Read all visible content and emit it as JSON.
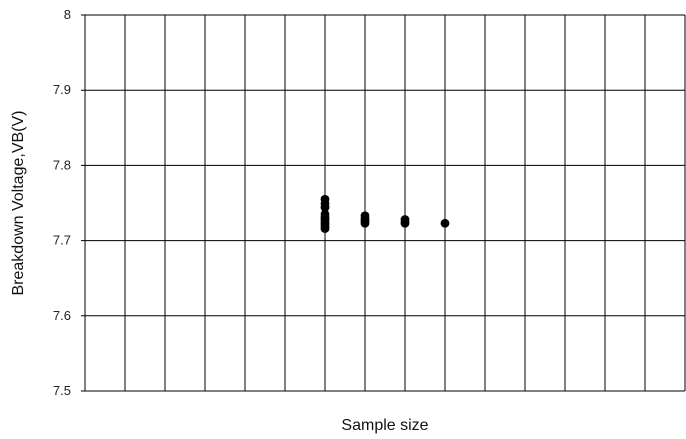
{
  "chart_data": {
    "type": "scatter",
    "title": "",
    "xlabel": "Sample size",
    "ylabel": "Breakdown Voltage,VB(V)",
    "ylim": [
      7.5,
      8.0
    ],
    "yticks": [
      "7.5",
      "7.6",
      "7.7",
      "7.8",
      "7.9",
      "8"
    ],
    "x_columns": 15,
    "x_tick_labels": [],
    "grid": true,
    "legend": "none",
    "marker_color": "#000000",
    "points": [
      {
        "x": 6,
        "y": 7.755
      },
      {
        "x": 6,
        "y": 7.749
      },
      {
        "x": 6,
        "y": 7.744
      },
      {
        "x": 6,
        "y": 7.735
      },
      {
        "x": 6,
        "y": 7.731
      },
      {
        "x": 6,
        "y": 7.728
      },
      {
        "x": 6,
        "y": 7.725
      },
      {
        "x": 6,
        "y": 7.722
      },
      {
        "x": 6,
        "y": 7.719
      },
      {
        "x": 6,
        "y": 7.716
      },
      {
        "x": 7,
        "y": 7.733
      },
      {
        "x": 7,
        "y": 7.729
      },
      {
        "x": 7,
        "y": 7.726
      },
      {
        "x": 7,
        "y": 7.723
      },
      {
        "x": 8,
        "y": 7.728
      },
      {
        "x": 8,
        "y": 7.725
      },
      {
        "x": 8,
        "y": 7.723
      },
      {
        "x": 9,
        "y": 7.723
      }
    ]
  }
}
